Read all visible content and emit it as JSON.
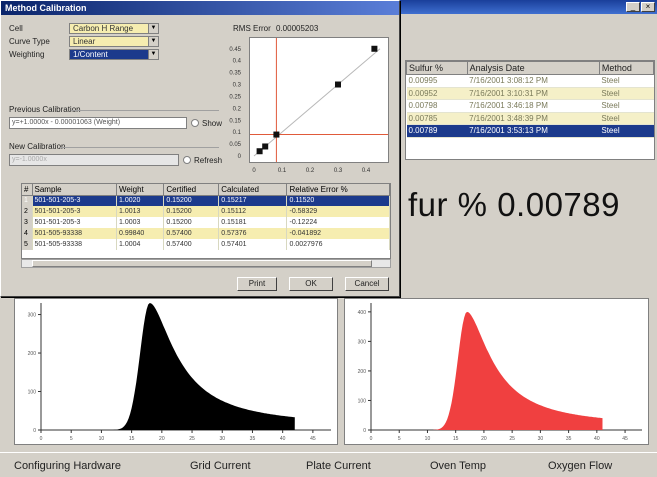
{
  "app": {
    "close_glyph": "×",
    "results_table": {
      "columns": [
        "Sulfur %",
        "Analysis Date",
        "Method"
      ],
      "rows": [
        [
          "0.00995",
          "7/16/2001 3:08:12 PM",
          "Steel"
        ],
        [
          "0.00952",
          "7/16/2001 3:10:31 PM",
          "Steel"
        ],
        [
          "0.00798",
          "7/16/2001 3:46:18 PM",
          "Steel"
        ],
        [
          "0.00785",
          "7/16/2001 3:48:39 PM",
          "Steel"
        ],
        [
          "0.00789",
          "7/16/2001 3:53:13 PM",
          "Steel"
        ]
      ],
      "selected_row": 4
    },
    "readout": "fur % 0.00789",
    "status_bar": [
      "Configuring Hardware",
      "Grid Current",
      "Plate Current",
      "Oven Temp",
      "Oxygen Flow"
    ]
  },
  "dialog": {
    "title": "Method Calibration",
    "cell_label": "Cell",
    "cell_value": "Carbon H Range",
    "curve_type_label": "Curve Type",
    "curve_type_value": "Linear",
    "weighting_label": "Weighting",
    "weighting_value": "1/Content",
    "rms_label": "RMS Error",
    "rms_value": "0.00005203",
    "previous_label": "Previous Calibration",
    "previous_value": "y=+1.0000x - 0.00001063 (Weight)",
    "show_label": "Show",
    "new_label": "New Calibration",
    "new_value": "y=-1.0000x",
    "refresh_label": "Refresh",
    "print_label": "Print",
    "ok_label": "OK",
    "cancel_label": "Cancel"
  },
  "cal_table": {
    "columns": [
      "#",
      "Sample",
      "Weight",
      "Certified",
      "Calculated",
      "Relative Error %"
    ],
    "rows": [
      [
        "1",
        "501-501-205-3",
        "1.0020",
        "0.15200",
        "0.15217",
        "0.11520"
      ],
      [
        "2",
        "501-501-205-3",
        "1.0013",
        "0.15200",
        "0.15112",
        "-0.58329"
      ],
      [
        "3",
        "501-501-205-3",
        "1.0003",
        "0.15200",
        "0.15181",
        "-0.12224"
      ],
      [
        "4",
        "501-505-93338",
        "0.99840",
        "0.57400",
        "0.57376",
        "-0.041892"
      ],
      [
        "5",
        "501-505-93338",
        "1.0004",
        "0.57400",
        "0.57401",
        "0.0027976"
      ]
    ],
    "selected_row": 0
  },
  "chart_data": [
    {
      "type": "scatter",
      "title": "",
      "xlabel": "",
      "ylabel": "",
      "x_ticks": [
        "0",
        "0.1",
        "0.2",
        "0.3",
        "0.4"
      ],
      "y_ticks": [
        "0",
        "0.05",
        "0.1",
        "0.15",
        "0.2",
        "0.25",
        "0.3",
        "0.35",
        "0.4",
        "0.45"
      ],
      "xlim": [
        0,
        0.45
      ],
      "ylim": [
        0,
        0.47
      ],
      "series": [
        {
          "x": [
            0.02,
            0.04,
            0.08,
            0.3,
            0.43
          ],
          "y": [
            0.02,
            0.04,
            0.09,
            0.3,
            0.45
          ]
        }
      ],
      "fit_line": {
        "x": [
          0,
          0.45
        ],
        "y": [
          0,
          0.45
        ]
      },
      "crosshair": {
        "x": 0.08,
        "y": 0.09,
        "color": "#e05a3a"
      }
    },
    {
      "type": "area",
      "color": "#000000",
      "y_ticks": [
        "0",
        "100",
        "200",
        "300"
      ],
      "x_ticks": [
        "0",
        "5",
        "10",
        "15",
        "20",
        "25",
        "30",
        "35",
        "40",
        "45"
      ],
      "xlim": [
        0,
        48
      ],
      "ylim": [
        0,
        330
      ],
      "peak": {
        "x": 18,
        "y": 330
      }
    },
    {
      "type": "area",
      "color": "#f04040",
      "y_ticks": [
        "0",
        "100",
        "200",
        "300",
        "400"
      ],
      "x_ticks": [
        "0",
        "5",
        "10",
        "15",
        "20",
        "25",
        "30",
        "35",
        "40",
        "45"
      ],
      "xlim": [
        0,
        48
      ],
      "ylim": [
        0,
        430
      ],
      "peak": {
        "x": 17,
        "y": 400
      }
    }
  ]
}
